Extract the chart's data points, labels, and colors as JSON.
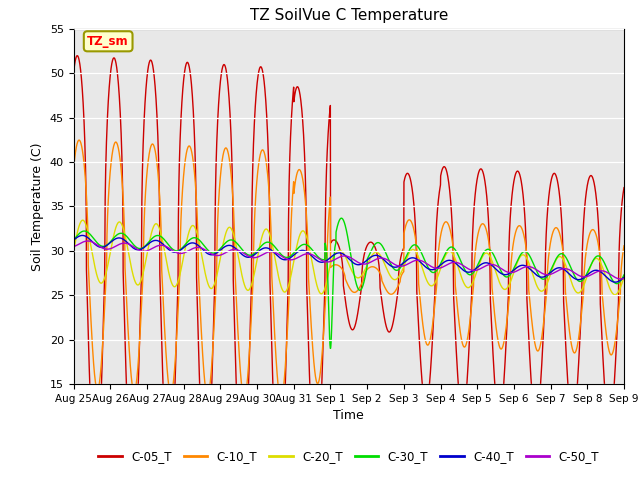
{
  "title": "TZ SoilVue C Temperature",
  "xlabel": "Time",
  "ylabel": "Soil Temperature (C)",
  "ylim": [
    15,
    55
  ],
  "background_color": "#e8e8e8",
  "annotation_text": "TZ_sm",
  "annotation_bg": "#ffffcc",
  "annotation_border": "#999900",
  "series_order": [
    "C-05_T",
    "C-10_T",
    "C-20_T",
    "C-30_T",
    "C-40_T",
    "C-50_T"
  ],
  "series": {
    "C-05_T": {
      "color": "#cc0000",
      "lw": 1.0
    },
    "C-10_T": {
      "color": "#ff8800",
      "lw": 1.0
    },
    "C-20_T": {
      "color": "#dddd00",
      "lw": 1.0
    },
    "C-30_T": {
      "color": "#00dd00",
      "lw": 1.0
    },
    "C-40_T": {
      "color": "#0000cc",
      "lw": 1.0
    },
    "C-50_T": {
      "color": "#aa00cc",
      "lw": 1.0
    }
  },
  "xtick_labels": [
    "Aug 25",
    "Aug 26",
    "Aug 27",
    "Aug 28",
    "Aug 29",
    "Aug 30",
    "Aug 31",
    "Sep 1",
    "Sep 2",
    "Sep 3",
    "Sep 4",
    "Sep 5",
    "Sep 6",
    "Sep 7",
    "Sep 8",
    "Sep 9"
  ],
  "ytick_values": [
    15,
    20,
    25,
    30,
    35,
    40,
    45,
    50,
    55
  ]
}
